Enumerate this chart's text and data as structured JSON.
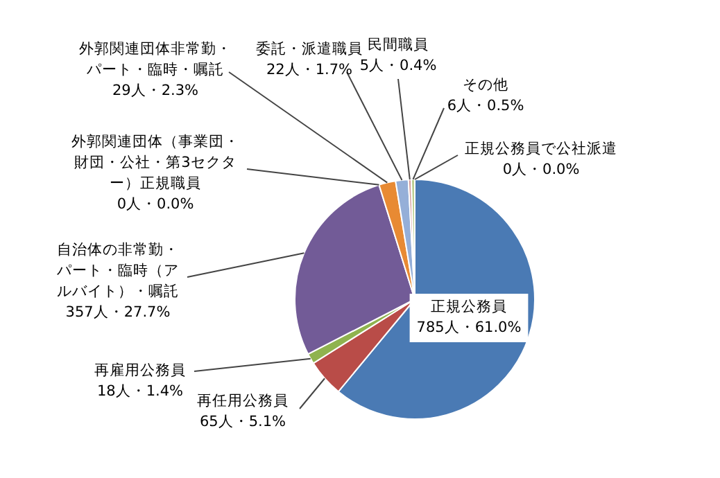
{
  "chart_data": {
    "type": "pie",
    "categories": [
      "正規公務員",
      "再任用公務員",
      "再雇用公務員",
      "自治体の非常勤・パート・臨時（アルバイト）・嘱託",
      "外郭関連団体（事業団・財団・公社・第3セクター）正規職員",
      "外郭関連団体非常勤・パート・臨時・嘱託",
      "委託・派遣職員",
      "民間職員",
      "その他",
      "正規公務員で公社派遣"
    ],
    "values": [
      785,
      65,
      18,
      357,
      0,
      29,
      22,
      5,
      6,
      0
    ],
    "colors": [
      "#4a7ab4",
      "#b94c48",
      "#8fb34f",
      "#725b97",
      "#47a8c2",
      "#e88a33",
      "#95afd8",
      "#d49a98",
      "#bccf92",
      "#a99bbd"
    ],
    "value_labels": [
      "785人・61.0%",
      "65人・5.1%",
      "18人・1.4%",
      "357人・27.7%",
      "0人・0.0%",
      "29人・2.3%",
      "22人・1.7%",
      "5人・0.4%",
      "6人・0.5%",
      "0人・0.0%"
    ],
    "legend": false
  }
}
